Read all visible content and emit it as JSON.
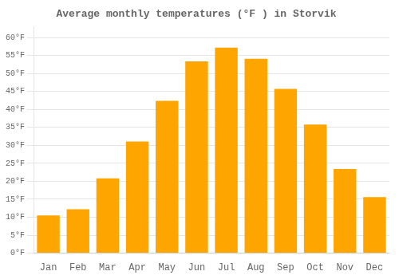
{
  "chart_data": {
    "type": "bar",
    "title": "Average monthly temperatures (°F ) in Storvik",
    "categories": [
      "Jan",
      "Feb",
      "Mar",
      "Apr",
      "May",
      "Jun",
      "Jul",
      "Aug",
      "Sep",
      "Oct",
      "Nov",
      "Dec"
    ],
    "values": [
      10.5,
      12.2,
      20.8,
      31.1,
      42.4,
      53.4,
      57.2,
      54.1,
      45.7,
      35.8,
      23.4,
      15.6
    ],
    "color": "#FFA500",
    "ylim": [
      0,
      63
    ],
    "yticks": [
      {
        "value": 0,
        "label": "0°F"
      },
      {
        "value": 5,
        "label": "5°F"
      },
      {
        "value": 10,
        "label": "10°F"
      },
      {
        "value": 15,
        "label": "15°F"
      },
      {
        "value": 20,
        "label": "20°F"
      },
      {
        "value": 25,
        "label": "25°F"
      },
      {
        "value": 30,
        "label": "30°F"
      },
      {
        "value": 35,
        "label": "35°F"
      },
      {
        "value": 40,
        "label": "40°F"
      },
      {
        "value": 45,
        "label": "45°F"
      },
      {
        "value": 50,
        "label": "50°F"
      },
      {
        "value": 55,
        "label": "55°F"
      },
      {
        "value": 60,
        "label": "60°F"
      }
    ],
    "grid": true
  }
}
